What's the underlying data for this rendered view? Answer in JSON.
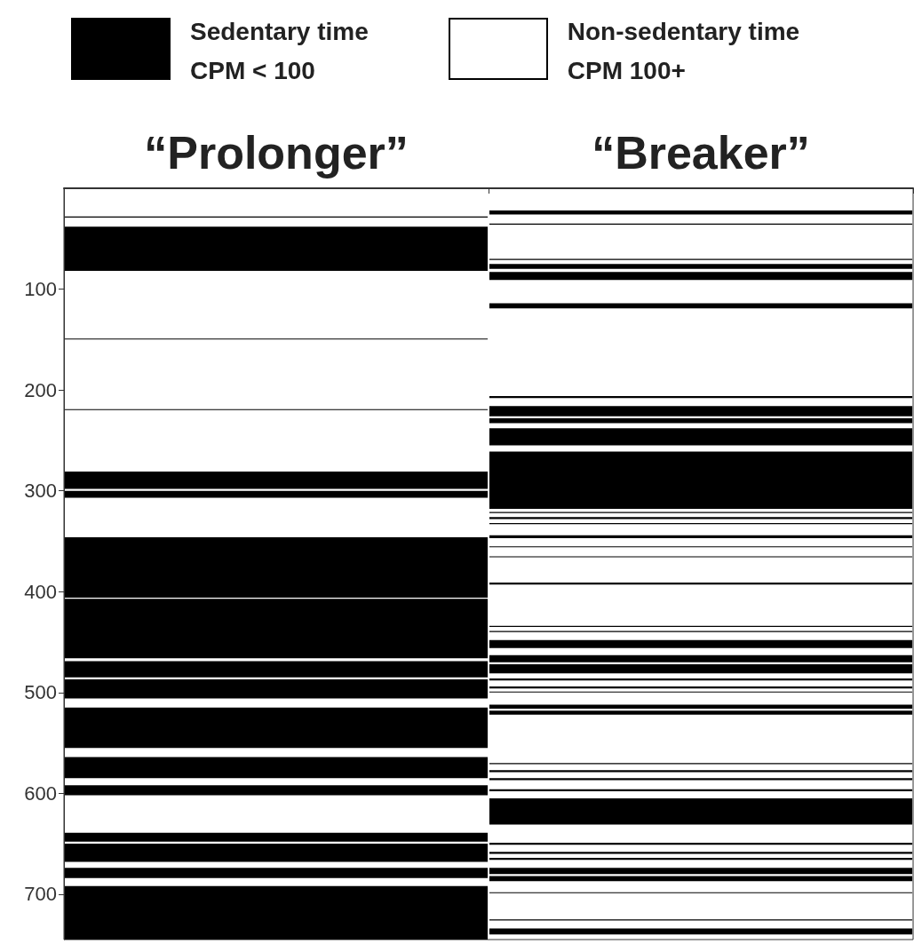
{
  "chart_data": {
    "type": "bar",
    "legend": "top",
    "categories": [
      "“Prolonger”",
      "“Breaker”"
    ],
    "ylim": [
      745,
      0
    ],
    "yticks": [
      100,
      200,
      300,
      400,
      500,
      600,
      700
    ],
    "grid": false,
    "annotations": [
      "Non-sedentary time\nCPM 100+"
    ],
    "series": [
      {
        "name": "Sedentary time\nCPM < 100",
        "color": "#000000",
        "values": [
          1,
          4
        ],
        "base": [
          28,
          22
        ]
      },
      {
        "color": "#000000",
        "values": [
          44,
          1
        ],
        "base": [
          38,
          35
        ]
      },
      {
        "color": "#000000",
        "values": [
          1,
          1
        ],
        "base": [
          149,
          70
        ]
      },
      {
        "color": "#000000",
        "values": [
          1,
          5
        ],
        "base": [
          219,
          75
        ]
      },
      {
        "color": "#000000",
        "values": [
          17,
          8
        ],
        "base": [
          281,
          83
        ]
      },
      {
        "color": "#000000",
        "values": [
          7,
          5
        ],
        "base": [
          300,
          114
        ]
      },
      {
        "color": "#000000",
        "values": [
          60,
          2
        ],
        "base": [
          346,
          206
        ]
      },
      {
        "color": "#000000",
        "values": [
          59,
          10
        ],
        "base": [
          407,
          216
        ]
      },
      {
        "color": "#000000",
        "values": [
          16,
          5
        ],
        "base": [
          469,
          228
        ]
      },
      {
        "color": "#000000",
        "values": [
          19,
          17
        ],
        "base": [
          487,
          238
        ]
      },
      {
        "color": "#000000",
        "values": [
          40,
          57
        ],
        "base": [
          515,
          261
        ]
      },
      {
        "color": "#000000",
        "values": [
          21,
          1
        ],
        "base": [
          564,
          321
        ]
      },
      {
        "color": "#000000",
        "values": [
          10,
          2
        ],
        "base": [
          592,
          326
        ]
      },
      {
        "color": "#000000",
        "values": [
          9,
          1
        ],
        "base": [
          639,
          332
        ]
      },
      {
        "color": "#000000",
        "values": [
          18,
          3
        ],
        "base": [
          650,
          344
        ]
      },
      {
        "color": "#000000",
        "values": [
          10,
          1
        ],
        "base": [
          674,
          355
        ]
      },
      {
        "color": "#000000",
        "values": [
          53,
          1
        ],
        "base": [
          692,
          365
        ]
      },
      {
        "color": "#000000",
        "values": [
          null,
          2
        ],
        "base": [
          null,
          391
        ]
      },
      {
        "color": "#000000",
        "values": [
          null,
          1
        ],
        "base": [
          null,
          434
        ]
      },
      {
        "color": "#000000",
        "values": [
          null,
          1
        ],
        "base": [
          null,
          439
        ]
      },
      {
        "color": "#000000",
        "values": [
          null,
          8
        ],
        "base": [
          null,
          448
        ]
      },
      {
        "color": "#000000",
        "values": [
          null,
          7
        ],
        "base": [
          null,
          463
        ]
      },
      {
        "color": "#000000",
        "values": [
          null,
          9
        ],
        "base": [
          null,
          472
        ]
      },
      {
        "color": "#000000",
        "values": [
          null,
          2
        ],
        "base": [
          null,
          486
        ]
      },
      {
        "color": "#000000",
        "values": [
          null,
          2
        ],
        "base": [
          null,
          494
        ]
      },
      {
        "color": "#000000",
        "values": [
          null,
          1
        ],
        "base": [
          null,
          499
        ]
      },
      {
        "color": "#000000",
        "values": [
          null,
          4
        ],
        "base": [
          null,
          512
        ]
      },
      {
        "color": "#000000",
        "values": [
          null,
          4
        ],
        "base": [
          null,
          518
        ]
      },
      {
        "color": "#000000",
        "values": [
          null,
          1
        ],
        "base": [
          null,
          570
        ]
      },
      {
        "color": "#000000",
        "values": [
          null,
          2
        ],
        "base": [
          null,
          577
        ]
      },
      {
        "color": "#000000",
        "values": [
          null,
          2
        ],
        "base": [
          null,
          585
        ]
      },
      {
        "color": "#000000",
        "values": [
          null,
          2
        ],
        "base": [
          null,
          596
        ]
      },
      {
        "color": "#000000",
        "values": [
          null,
          26
        ],
        "base": [
          null,
          605
        ]
      },
      {
        "color": "#000000",
        "values": [
          null,
          2
        ],
        "base": [
          null,
          649
        ]
      },
      {
        "color": "#000000",
        "values": [
          null,
          2
        ],
        "base": [
          null,
          658
        ]
      },
      {
        "color": "#000000",
        "values": [
          null,
          2
        ],
        "base": [
          null,
          664
        ]
      },
      {
        "color": "#000000",
        "values": [
          null,
          6
        ],
        "base": [
          null,
          674
        ]
      },
      {
        "color": "#000000",
        "values": [
          null,
          5
        ],
        "base": [
          null,
          682
        ]
      },
      {
        "color": "#000000",
        "values": [
          null,
          1
        ],
        "base": [
          null,
          698
        ]
      },
      {
        "color": "#000000",
        "values": [
          null,
          1
        ],
        "base": [
          null,
          725
        ]
      },
      {
        "color": "#000000",
        "values": [
          null,
          6
        ],
        "base": [
          null,
          734
        ]
      }
    ]
  }
}
